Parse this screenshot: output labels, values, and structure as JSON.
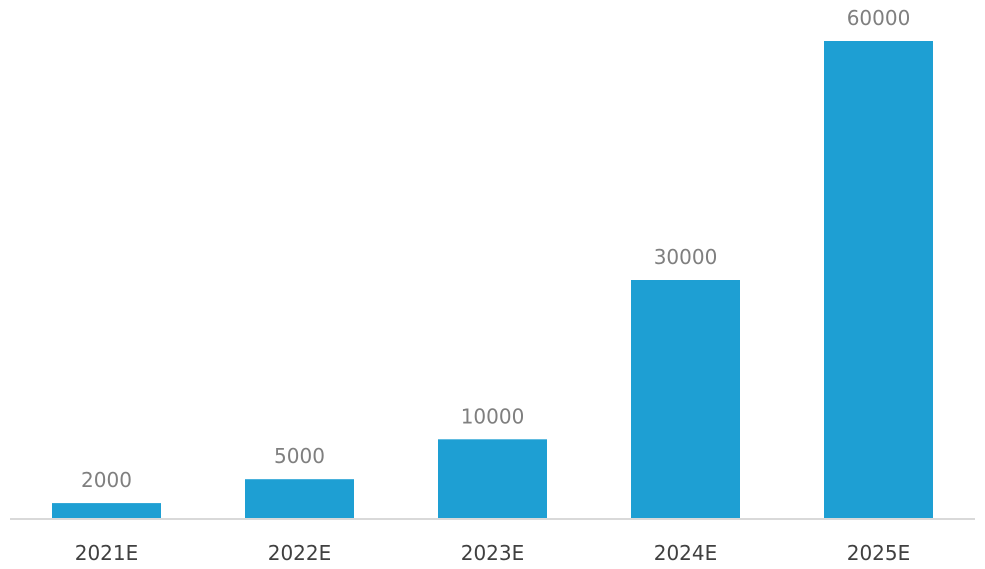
{
  "chart_data": {
    "type": "bar",
    "categories": [
      "2021E",
      "2022E",
      "2023E",
      "2024E",
      "2025E"
    ],
    "values": [
      2000,
      5000,
      10000,
      30000,
      60000
    ],
    "data_labels": [
      "2000",
      "5000",
      "10000",
      "30000",
      "60000"
    ],
    "title": "",
    "xlabel": "",
    "ylabel": "",
    "ylim": [
      0,
      60000
    ],
    "grid": false,
    "legend": "none",
    "colors": {
      "bar": "#1e9fd3",
      "axis": "#d9d9d9",
      "tick_text": "#404040",
      "data_label_text": "#7f7f7f"
    }
  }
}
